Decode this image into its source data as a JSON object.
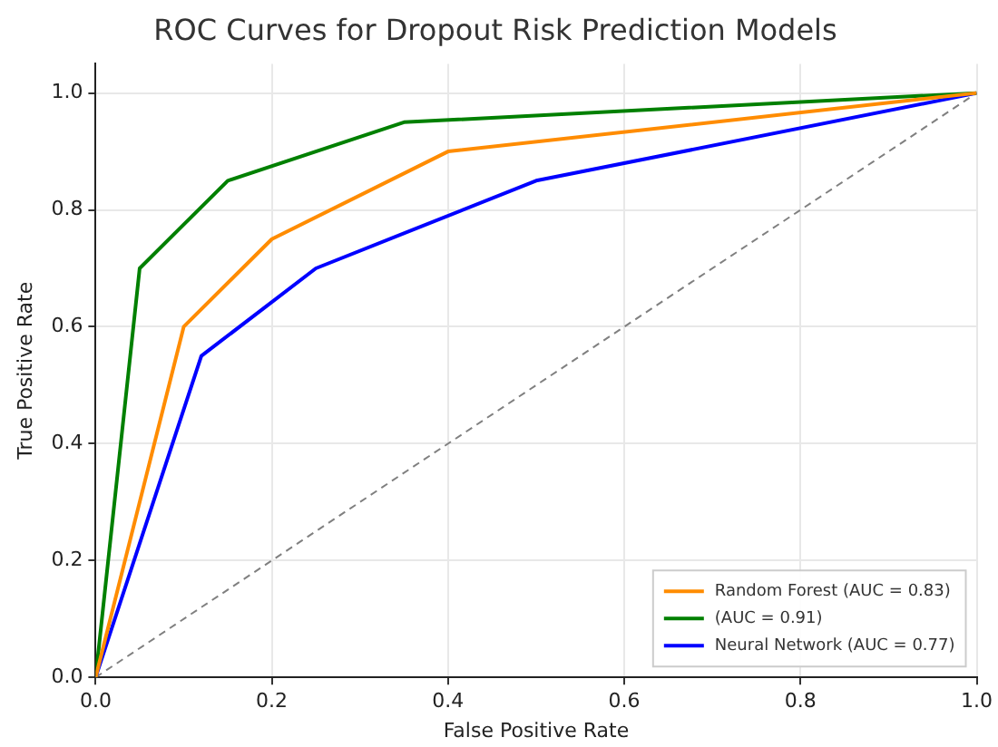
{
  "chart_data": {
    "type": "line",
    "title": "ROC Curves for Dropout Risk Prediction Models",
    "xlabel": "False Positive Rate",
    "ylabel": "True Positive Rate",
    "xlim": [
      0,
      1
    ],
    "ylim": [
      0,
      1.05
    ],
    "xticks": [
      {
        "value": 0,
        "label": "0.0"
      },
      {
        "value": 0.2,
        "label": "0.2"
      },
      {
        "value": 0.4,
        "label": "0.4"
      },
      {
        "value": 0.6,
        "label": "0.6"
      },
      {
        "value": 0.8,
        "label": "0.8"
      },
      {
        "value": 1,
        "label": "1.0"
      }
    ],
    "yticks": [
      {
        "value": 0,
        "label": "0.0"
      },
      {
        "value": 0.2,
        "label": "0.2"
      },
      {
        "value": 0.4,
        "label": "0.4"
      },
      {
        "value": 0.6,
        "label": "0.6"
      },
      {
        "value": 0.8,
        "label": "0.8"
      },
      {
        "value": 1,
        "label": "1.0"
      }
    ],
    "grid": true,
    "legend": "bottom right",
    "marker": "none",
    "series": [
      {
        "name": "Random Forest (AUC = 0.83)",
        "color": "#ff8c00",
        "x": [
          0,
          0.1,
          0.2,
          0.4,
          1
        ],
        "values": [
          0,
          0.6,
          0.75,
          0.9,
          1
        ]
      },
      {
        "name": "(AUC = 0.91)",
        "color": "#008000",
        "x": [
          0,
          0.05,
          0.15,
          0.35,
          1
        ],
        "values": [
          0,
          0.7,
          0.85,
          0.95,
          1
        ]
      },
      {
        "name": "Neural Network (AUC = 0.77)",
        "color": "#0000ff",
        "x": [
          0,
          0.12,
          0.25,
          0.5,
          1
        ],
        "values": [
          0,
          0.55,
          0.7,
          0.85,
          1
        ]
      },
      {
        "color": "#808080",
        "line_style": "dashed",
        "x": [
          0,
          1
        ],
        "values": [
          0,
          1
        ]
      }
    ]
  }
}
